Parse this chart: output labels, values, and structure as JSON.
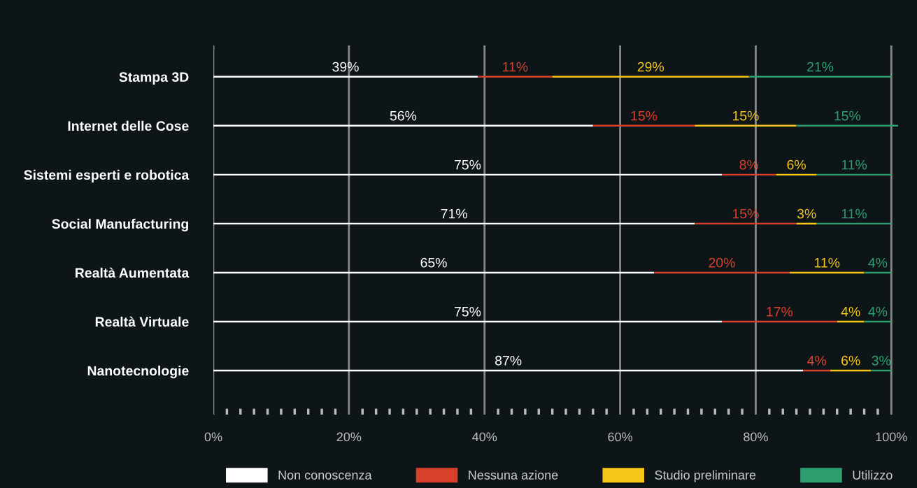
{
  "chart_data": {
    "type": "bar",
    "orientation": "horizontal",
    "stacked": true,
    "categories": [
      "Stampa 3D",
      "Internet delle Cose",
      "Sistemi esperti e robotica",
      "Social Manufacturing",
      "Realtà Aumentata",
      "Realtà Virtuale",
      "Nanotecnologie"
    ],
    "series": [
      {
        "name": "Non conoscenza",
        "color": "#ffffff",
        "values": [
          39,
          56,
          75,
          71,
          65,
          75,
          87
        ],
        "value_labels": [
          "39%",
          "56%",
          "75%",
          "71%",
          "65%",
          "75%",
          "87%"
        ]
      },
      {
        "name": "Nessuna azione",
        "color": "#d9402b",
        "values": [
          11,
          15,
          8,
          15,
          20,
          17,
          4
        ],
        "value_labels": [
          "11%",
          "15%",
          "8%",
          "15%",
          "20%",
          "17%",
          "4%"
        ]
      },
      {
        "name": "Studio preliminare",
        "color": "#f5c518",
        "values": [
          29,
          15,
          6,
          3,
          11,
          4,
          6
        ],
        "value_labels": [
          "29%",
          "15%",
          "6%",
          "3%",
          "11%",
          "4%",
          "6%"
        ]
      },
      {
        "name": "Utilizzo",
        "color": "#2e9e6e",
        "values": [
          21,
          15,
          11,
          11,
          4,
          4,
          3
        ],
        "value_labels": [
          "21%",
          "15%",
          "11%",
          "11%",
          "4%",
          "4%",
          "3%"
        ]
      }
    ],
    "xlim": [
      0,
      101
    ],
    "xticks": [
      {
        "value": 0,
        "label": "0%"
      },
      {
        "value": 2,
        "label": null
      },
      {
        "value": 4,
        "label": null
      },
      {
        "value": 6,
        "label": null
      },
      {
        "value": 8,
        "label": null
      },
      {
        "value": 10,
        "label": null
      },
      {
        "value": 12,
        "label": null
      },
      {
        "value": 14,
        "label": null
      },
      {
        "value": 16,
        "label": null
      },
      {
        "value": 18,
        "label": null
      },
      {
        "value": 20,
        "label": "20%"
      },
      {
        "value": 22,
        "label": null
      },
      {
        "value": 24,
        "label": null
      },
      {
        "value": 26,
        "label": null
      },
      {
        "value": 28,
        "label": null
      },
      {
        "value": 30,
        "label": null
      },
      {
        "value": 32,
        "label": null
      },
      {
        "value": 34,
        "label": null
      },
      {
        "value": 36,
        "label": null
      },
      {
        "value": 38,
        "label": null
      },
      {
        "value": 40,
        "label": "40%"
      },
      {
        "value": 42,
        "label": null
      },
      {
        "value": 44,
        "label": null
      },
      {
        "value": 46,
        "label": null
      },
      {
        "value": 48,
        "label": null
      },
      {
        "value": 50,
        "label": null
      },
      {
        "value": 52,
        "label": null
      },
      {
        "value": 54,
        "label": null
      },
      {
        "value": 56,
        "label": null
      },
      {
        "value": 58,
        "label": null
      },
      {
        "value": 60,
        "label": "60%"
      },
      {
        "value": 62,
        "label": null
      },
      {
        "value": 64,
        "label": null
      },
      {
        "value": 66,
        "label": null
      },
      {
        "value": 68,
        "label": null
      },
      {
        "value": 70,
        "label": null
      },
      {
        "value": 72,
        "label": null
      },
      {
        "value": 74,
        "label": null
      },
      {
        "value": 76,
        "label": null
      },
      {
        "value": 78,
        "label": null
      },
      {
        "value": 80,
        "label": "80%"
      },
      {
        "value": 82,
        "label": null
      },
      {
        "value": 84,
        "label": null
      },
      {
        "value": 86,
        "label": null
      },
      {
        "value": 88,
        "label": null
      },
      {
        "value": 90,
        "label": null
      },
      {
        "value": 92,
        "label": null
      },
      {
        "value": 94,
        "label": null
      },
      {
        "value": 96,
        "label": null
      },
      {
        "value": 98,
        "label": null
      },
      {
        "value": 100,
        "label": "100%"
      }
    ],
    "grid": "x",
    "legend": "bottom"
  }
}
